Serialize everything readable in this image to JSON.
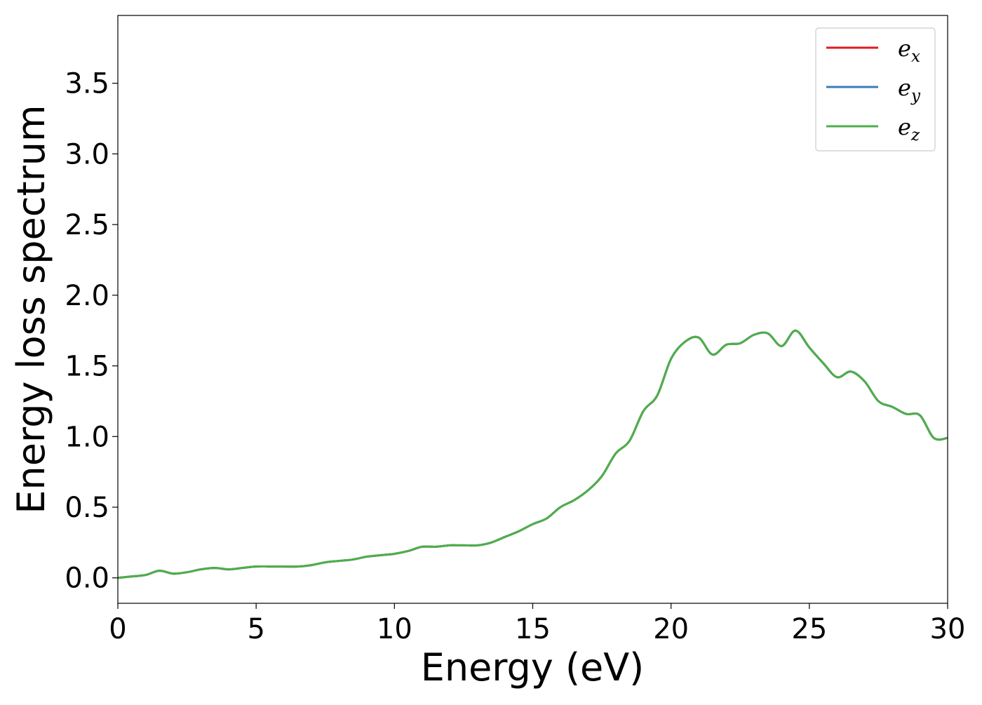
{
  "chart_data": {
    "type": "line",
    "title": "",
    "xlabel": "Energy (eV)",
    "ylabel": "Energy loss spectrum",
    "xlim": [
      0,
      30
    ],
    "ylim": [
      -0.18,
      3.98
    ],
    "xticks": [
      "0",
      "5",
      "10",
      "15",
      "20",
      "25",
      "30"
    ],
    "yticks": [
      "0.0",
      "0.5",
      "1.0",
      "1.5",
      "2.0",
      "2.5",
      "3.0",
      "3.5"
    ],
    "grid": false,
    "legend_position": "top-right",
    "x": [
      0,
      0.5,
      1.0,
      1.5,
      2.0,
      2.5,
      3.0,
      3.5,
      4.0,
      4.5,
      5.0,
      5.5,
      6.0,
      6.5,
      7.0,
      7.5,
      8.0,
      8.5,
      9.0,
      9.5,
      10.0,
      10.5,
      11.0,
      11.5,
      12.0,
      12.5,
      13.0,
      13.5,
      14.0,
      14.5,
      15.0,
      15.5,
      16.0,
      16.5,
      17.0,
      17.5,
      18.0,
      18.5,
      19.0,
      19.5,
      20.0,
      20.5,
      21.0,
      21.5,
      22.0,
      22.5,
      23.0,
      23.5,
      24.0,
      24.5,
      25.0,
      25.5,
      26.0,
      26.5,
      27.0,
      27.5,
      28.0,
      28.5,
      29.0,
      29.5,
      30.0
    ],
    "series": [
      {
        "name": "x",
        "color": "#e41a1c",
        "values": [
          0.0,
          0.01,
          0.02,
          0.05,
          0.03,
          0.04,
          0.06,
          0.07,
          0.06,
          0.07,
          0.08,
          0.08,
          0.08,
          0.08,
          0.09,
          0.11,
          0.12,
          0.13,
          0.15,
          0.16,
          0.17,
          0.19,
          0.22,
          0.22,
          0.23,
          0.23,
          0.23,
          0.25,
          0.29,
          0.33,
          0.38,
          0.42,
          0.5,
          0.55,
          0.62,
          0.72,
          0.88,
          0.97,
          1.18,
          1.29,
          1.55,
          1.67,
          1.7,
          1.58,
          1.65,
          1.66,
          1.72,
          1.73,
          1.64,
          1.75,
          1.63,
          1.52,
          1.42,
          1.46,
          1.39,
          1.25,
          1.21,
          1.16,
          1.15,
          0.99,
          0.99
        ]
      },
      {
        "name": "y",
        "color": "#377eb8",
        "values": [
          0.0,
          0.01,
          0.02,
          0.05,
          0.03,
          0.04,
          0.06,
          0.07,
          0.06,
          0.07,
          0.08,
          0.08,
          0.08,
          0.08,
          0.09,
          0.11,
          0.12,
          0.13,
          0.15,
          0.16,
          0.17,
          0.19,
          0.22,
          0.22,
          0.23,
          0.23,
          0.23,
          0.25,
          0.29,
          0.33,
          0.38,
          0.42,
          0.5,
          0.55,
          0.62,
          0.72,
          0.88,
          0.97,
          1.18,
          1.29,
          1.55,
          1.67,
          1.7,
          1.58,
          1.65,
          1.66,
          1.72,
          1.73,
          1.64,
          1.75,
          1.63,
          1.52,
          1.42,
          1.46,
          1.39,
          1.25,
          1.21,
          1.16,
          1.15,
          0.99,
          0.99
        ]
      },
      {
        "name": "z",
        "color": "#4daf4a",
        "values": [
          0.0,
          0.01,
          0.02,
          0.05,
          0.03,
          0.04,
          0.06,
          0.07,
          0.06,
          0.07,
          0.08,
          0.08,
          0.08,
          0.08,
          0.09,
          0.11,
          0.12,
          0.13,
          0.15,
          0.16,
          0.17,
          0.19,
          0.22,
          0.22,
          0.23,
          0.23,
          0.23,
          0.25,
          0.29,
          0.33,
          0.38,
          0.42,
          0.5,
          0.55,
          0.62,
          0.72,
          0.88,
          0.97,
          1.18,
          1.29,
          1.55,
          1.67,
          1.7,
          1.58,
          1.65,
          1.66,
          1.72,
          1.73,
          1.64,
          1.75,
          1.63,
          1.52,
          1.42,
          1.46,
          1.39,
          1.25,
          1.21,
          1.16,
          1.15,
          0.99,
          0.99
        ]
      }
    ],
    "legend": [
      {
        "symbol": "e",
        "subscript": "x",
        "color": "#e41a1c"
      },
      {
        "symbol": "e",
        "subscript": "y",
        "color": "#377eb8"
      },
      {
        "symbol": "e",
        "subscript": "z",
        "color": "#4daf4a"
      }
    ]
  }
}
